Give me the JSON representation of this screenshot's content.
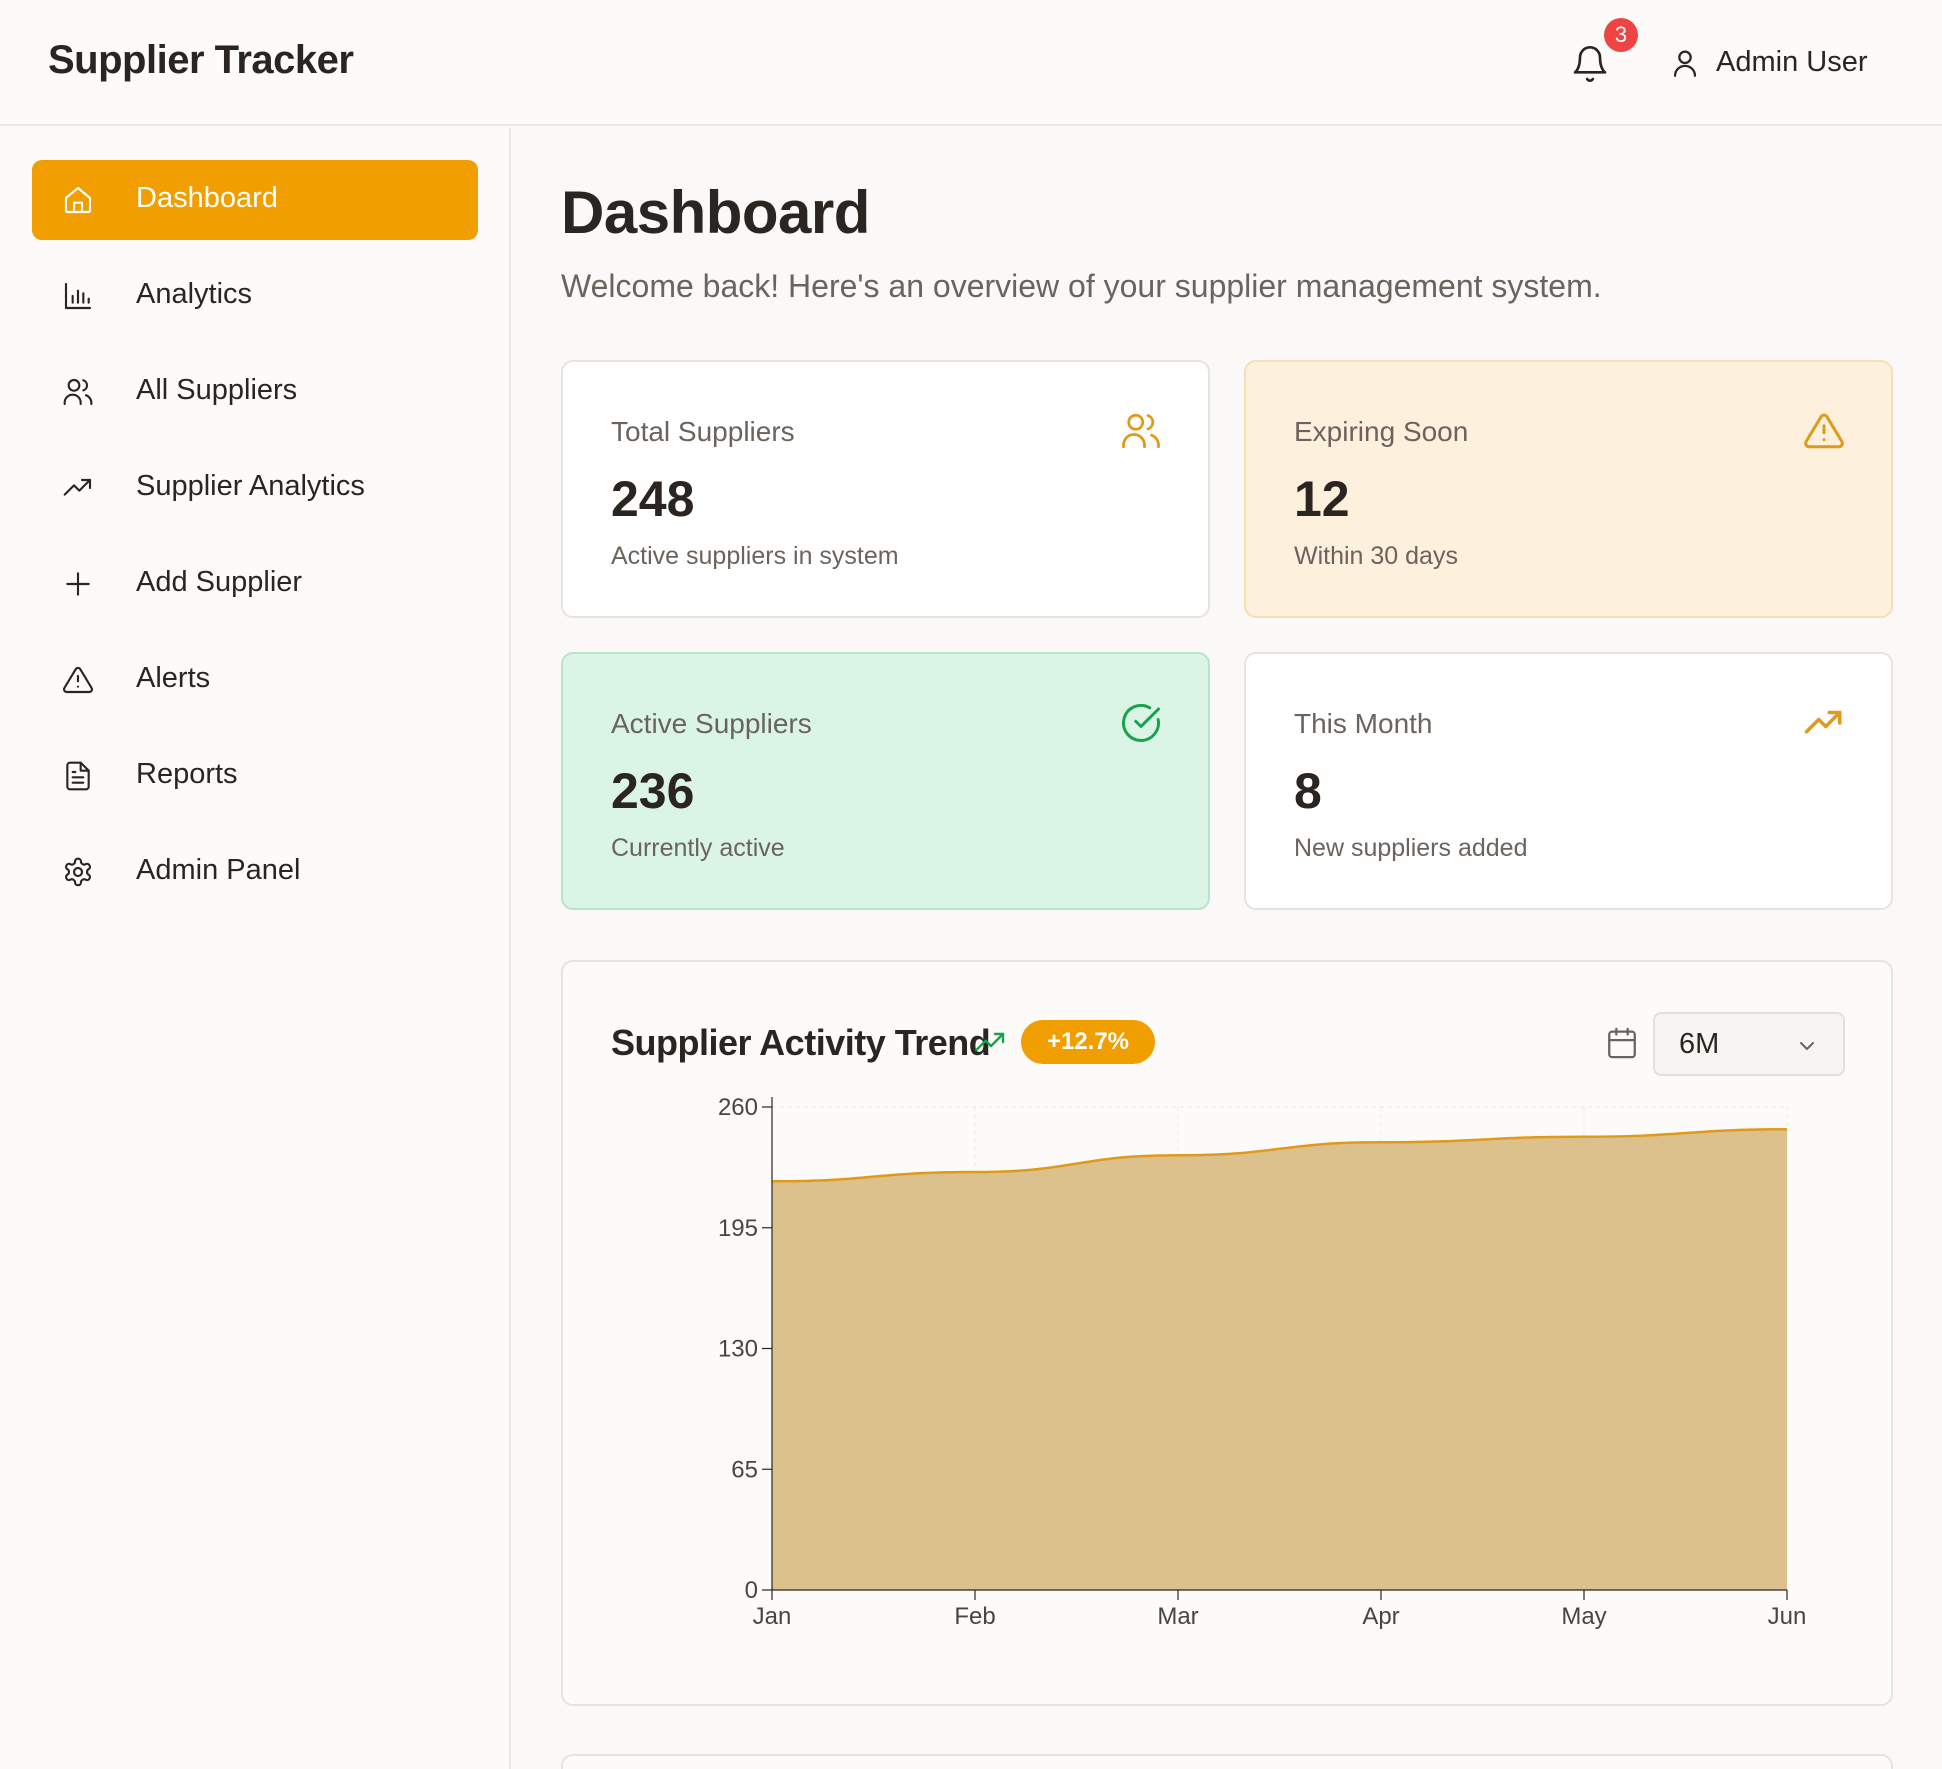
{
  "header": {
    "app_title": "Supplier Tracker",
    "notification_count": "3",
    "user_name": "Admin User"
  },
  "sidebar": {
    "items": [
      {
        "label": "Dashboard",
        "icon": "home-icon",
        "active": true
      },
      {
        "label": "Analytics",
        "icon": "bar-chart-icon"
      },
      {
        "label": "All Suppliers",
        "icon": "users-icon"
      },
      {
        "label": "Supplier Analytics",
        "icon": "trending-up-icon"
      },
      {
        "label": "Add Supplier",
        "icon": "plus-icon"
      },
      {
        "label": "Alerts",
        "icon": "alert-triangle-icon"
      },
      {
        "label": "Reports",
        "icon": "file-text-icon"
      },
      {
        "label": "Admin Panel",
        "icon": "settings-icon"
      }
    ]
  },
  "main": {
    "title": "Dashboard",
    "subtitle": "Welcome back! Here's an overview of your supplier management system."
  },
  "stats": [
    {
      "label": "Total Suppliers",
      "value": "248",
      "desc": "Active suppliers in system",
      "icon": "users-icon"
    },
    {
      "label": "Expiring Soon",
      "value": "12",
      "desc": "Within 30 days",
      "icon": "alert-triangle-icon"
    },
    {
      "label": "Active Suppliers",
      "value": "236",
      "desc": "Currently active",
      "icon": "check-circle-icon"
    },
    {
      "label": "This Month",
      "value": "8",
      "desc": "New suppliers added",
      "icon": "trending-up-icon"
    }
  ],
  "colors": {
    "accent": "#f09e00",
    "warning_bg": "#fdf0dc",
    "success_bg": "#daf4e6",
    "area_fill": "#dcc18c",
    "area_line": "#e09a1a",
    "badge_red": "#ef4444"
  },
  "chart": {
    "title": "Supplier Activity Trend",
    "change_badge": "+12.7%",
    "range_selected": "6M"
  },
  "chart_data": {
    "type": "area",
    "title": "Supplier Activity Trend",
    "categories": [
      "Jan",
      "Feb",
      "Mar",
      "Apr",
      "May",
      "Jun"
    ],
    "series": [
      {
        "values": [
          220,
          225,
          234,
          241,
          244,
          248
        ]
      }
    ],
    "y_ticks": [
      "0",
      "65",
      "130",
      "195",
      "260"
    ],
    "ylim": [
      0,
      260
    ],
    "grid": true,
    "xlabel": "",
    "ylabel": ""
  }
}
